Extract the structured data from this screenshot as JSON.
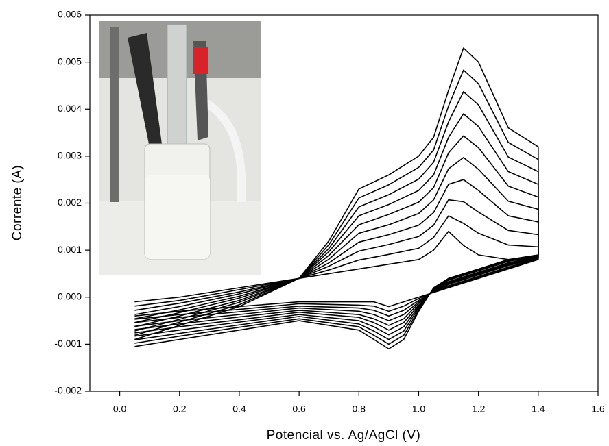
{
  "chart_data": {
    "type": "line",
    "x_label": "Potencial vs. Ag/AgCl (V)",
    "y_label": "Corrente (A)",
    "color": "#000000",
    "xlim": [
      -0.1,
      1.6
    ],
    "xticks": [
      {
        "value": 0,
        "label": "0.0"
      },
      0.2,
      0.4,
      0.6,
      0.8,
      {
        "value": 1,
        "label": "1.0"
      },
      1.2,
      1.4,
      1.6
    ],
    "ylim": [
      -0.002,
      0.006
    ],
    "yticks": [
      -0.002,
      -0.001,
      {
        "value": 0,
        "label": "0.000"
      },
      0.001,
      0.002,
      0.003,
      0.004,
      0.005,
      0.006
    ],
    "x": [
      0.05,
      0.2,
      0.4,
      0.6,
      0.7,
      0.8,
      0.9,
      1.0,
      1.05,
      1.1,
      1.15,
      1.2,
      1.3,
      1.4,
      1.4,
      1.3,
      1.2,
      1.1,
      1.05,
      1.0,
      0.95,
      0.9,
      0.85,
      0.8,
      0.6,
      0.4,
      0.2,
      0.05
    ],
    "series": [
      {
        "values": [
          -0.0001,
          0,
          0.0002,
          0.0004,
          0.0005,
          0.0006,
          0.0007,
          0.0008,
          0.001,
          0.0014,
          0.0011,
          0.0009,
          0.0008,
          0.0008,
          0.0008,
          0.0006,
          0.0004,
          0.0002,
          0.0001,
          0,
          -0.0001,
          -0.0002,
          -0.0001,
          -0.0001,
          -0.0001,
          -0.0002,
          -0.0003,
          -0.0004
        ]
      },
      {
        "values": [
          -0.00019,
          -7e-05,
          0.00016,
          0.0004,
          0.00058,
          0.00079,
          0.00091,
          0.00104,
          0.00127,
          0.00173,
          0.00157,
          0.00136,
          0.00111,
          0.00107,
          0.00081,
          0.00062,
          0.00042,
          0.00022,
          0.00011,
          -3e-05,
          -0.00019,
          -0.0003,
          -0.00019,
          -0.00017,
          -0.00014,
          -0.00026,
          -0.00037,
          -0.00047
        ]
      },
      {
        "values": [
          -0.00028,
          -0.00013,
          0.00011,
          0.0004,
          0.00066,
          0.00098,
          0.00112,
          0.00129,
          0.00153,
          0.00207,
          0.00203,
          0.00181,
          0.00142,
          0.00133,
          0.00082,
          0.00064,
          0.00044,
          0.00024,
          0.00012,
          -7e-05,
          -0.00028,
          -0.0004,
          -0.00028,
          -0.00023,
          -0.00019,
          -0.00031,
          -0.00043,
          -0.00054
        ]
      },
      {
        "values": [
          -0.00037,
          -0.0002,
          7e-05,
          0.0004,
          0.00073,
          0.00117,
          0.00133,
          0.00153,
          0.0018,
          0.0024,
          0.0025,
          0.00227,
          0.00173,
          0.0016,
          0.00083,
          0.00067,
          0.00047,
          0.00027,
          0.00013,
          -0.0001,
          -0.00037,
          -0.0005,
          -0.00037,
          -0.0003,
          -0.00023,
          -0.00037,
          -0.0005,
          -0.00062
        ]
      },
      {
        "values": [
          -0.00046,
          -0.00027,
          2e-05,
          0.0004,
          0.00081,
          0.00136,
          0.00154,
          0.00178,
          0.00207,
          0.00273,
          0.00297,
          0.00272,
          0.00204,
          0.00187,
          0.00084,
          0.00069,
          0.00049,
          0.00029,
          0.00014,
          -0.00013,
          -0.00046,
          -0.0006,
          -0.00046,
          -0.00037,
          -0.00028,
          -0.00042,
          -0.00057,
          -0.00069
        ]
      },
      {
        "values": [
          -0.00054,
          -0.00033,
          -2e-05,
          0.0004,
          0.00089,
          0.00154,
          0.00176,
          0.00202,
          0.00233,
          0.00307,
          0.00343,
          0.00318,
          0.00236,
          0.00213,
          0.00086,
          0.00071,
          0.00051,
          0.00031,
          0.00016,
          -0.00017,
          -0.00054,
          -0.0007,
          -0.00054,
          -0.00043,
          -0.00032,
          -0.00048,
          -0.00063,
          -0.00076
        ]
      },
      {
        "values": [
          -0.00063,
          -0.0004,
          -7e-05,
          0.0004,
          0.00097,
          0.00173,
          0.00197,
          0.00227,
          0.0026,
          0.0034,
          0.0039,
          0.00363,
          0.00267,
          0.0024,
          0.00087,
          0.00073,
          0.00053,
          0.00033,
          0.00017,
          -0.0002,
          -0.00063,
          -0.0008,
          -0.00063,
          -0.0005,
          -0.00037,
          -0.00053,
          -0.0007,
          -0.00083
        ]
      },
      {
        "values": [
          -0.00072,
          -0.00047,
          -0.00011,
          0.0004,
          0.00104,
          0.00192,
          0.00218,
          0.00251,
          0.00287,
          0.00373,
          0.00437,
          0.00409,
          0.00298,
          0.00267,
          0.00088,
          0.00076,
          0.00056,
          0.00036,
          0.00018,
          -0.00023,
          -0.00072,
          -0.0009,
          -0.00072,
          -0.00057,
          -0.00041,
          -0.00059,
          -0.00077,
          -0.00091
        ]
      },
      {
        "values": [
          -0.00081,
          -0.00053,
          -0.00016,
          0.0004,
          0.00112,
          0.00211,
          0.00239,
          0.00276,
          0.00313,
          0.00407,
          0.00483,
          0.00454,
          0.00329,
          0.00293,
          0.00089,
          0.00078,
          0.00058,
          0.00038,
          0.00019,
          -0.00027,
          -0.00081,
          -0.001,
          -0.00081,
          -0.00063,
          -0.00046,
          -0.00064,
          -0.00083,
          -0.00098
        ]
      },
      {
        "values": [
          -0.0009,
          -0.0006,
          -0.0002,
          0.0004,
          0.0012,
          0.0023,
          0.0026,
          0.003,
          0.0034,
          0.0044,
          0.0053,
          0.005,
          0.0036,
          0.0032,
          0.0009,
          0.0008,
          0.0006,
          0.0004,
          0.0002,
          -0.0003,
          -0.0009,
          -0.0011,
          -0.0009,
          -0.0007,
          -0.0005,
          -0.0007,
          -0.0009,
          -0.00105
        ]
      }
    ]
  }
}
